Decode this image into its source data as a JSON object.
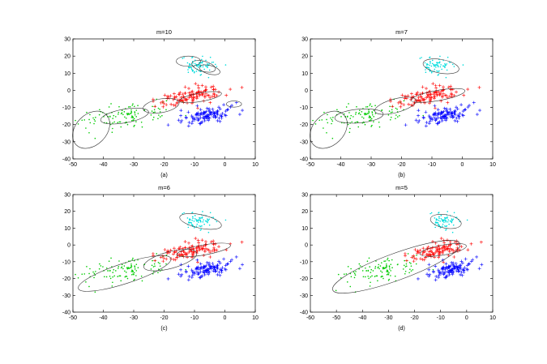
{
  "figure": {
    "colors": {
      "green": "#00cc00",
      "red": "#ff0000",
      "blue": "#0000ff",
      "cyan": "#00dddd",
      "ellipse": "#333333"
    }
  },
  "chart_data": [
    {
      "type": "scatter",
      "title": "m=10",
      "caption": "(a)",
      "xlim": [
        -50,
        10
      ],
      "ylim": [
        -40,
        30
      ],
      "xticks": [
        -50,
        -40,
        -30,
        -20,
        -10,
        0,
        10
      ],
      "yticks": [
        -40,
        -30,
        -20,
        -10,
        0,
        10,
        20,
        30
      ],
      "series": [
        {
          "name": "green cluster",
          "color": "green",
          "marker": "dot",
          "center": [
            -33,
            -15
          ],
          "spread": [
            7,
            3.5
          ],
          "count": 120
        },
        {
          "name": "red cluster",
          "color": "red",
          "marker": "plus",
          "center": [
            -10,
            -3
          ],
          "spread": [
            6,
            2.5
          ],
          "count": 110
        },
        {
          "name": "blue cluster",
          "color": "blue",
          "marker": "plus",
          "center": [
            -6,
            -15
          ],
          "spread": [
            5,
            2
          ],
          "count": 110
        },
        {
          "name": "cyan cluster",
          "color": "cyan",
          "marker": "dot",
          "center": [
            -8,
            14
          ],
          "spread": [
            3,
            2.5
          ],
          "count": 80
        }
      ],
      "ellipses": [
        {
          "cx": -44,
          "cy": -23,
          "rx": 7,
          "ry": 9,
          "angle": 45
        },
        {
          "cx": -33,
          "cy": -15,
          "rx": 8,
          "ry": 4,
          "angle": 10
        },
        {
          "cx": -21,
          "cy": -9,
          "rx": 6,
          "ry": 4,
          "angle": 10
        },
        {
          "cx": -8,
          "cy": -4,
          "rx": 7,
          "ry": 2.5,
          "angle": 10
        },
        {
          "cx": 3,
          "cy": -8,
          "rx": 2.5,
          "ry": 1.8,
          "angle": 0
        },
        {
          "cx": -12,
          "cy": 17,
          "rx": 4,
          "ry": 3,
          "angle": 0
        },
        {
          "cx": -7,
          "cy": 14,
          "rx": 4,
          "ry": 3,
          "angle": -15
        },
        {
          "cx": -5,
          "cy": 12,
          "rx": 3.5,
          "ry": 2.5,
          "angle": -15
        }
      ]
    },
    {
      "type": "scatter",
      "title": "m=7",
      "caption": "(b)",
      "xlim": [
        -50,
        10
      ],
      "ylim": [
        -40,
        30
      ],
      "xticks": [
        -50,
        -40,
        -30,
        -20,
        -10,
        0,
        10
      ],
      "yticks": [
        -40,
        -30,
        -20,
        -10,
        0,
        10,
        20,
        30
      ],
      "series": [
        {
          "name": "green cluster",
          "color": "green",
          "marker": "dot",
          "center": [
            -33,
            -15
          ],
          "spread": [
            7,
            3.5
          ],
          "count": 120
        },
        {
          "name": "red cluster",
          "color": "red",
          "marker": "plus",
          "center": [
            -10,
            -3
          ],
          "spread": [
            6,
            2.5
          ],
          "count": 110
        },
        {
          "name": "blue cluster",
          "color": "blue",
          "marker": "plus",
          "center": [
            -6,
            -15
          ],
          "spread": [
            5,
            2
          ],
          "count": 110
        },
        {
          "name": "cyan cluster",
          "color": "cyan",
          "marker": "dot",
          "center": [
            -8,
            14
          ],
          "spread": [
            3,
            2.5
          ],
          "count": 80
        }
      ],
      "ellipses": [
        {
          "cx": -44,
          "cy": -23,
          "rx": 7,
          "ry": 9,
          "angle": 45
        },
        {
          "cx": -34,
          "cy": -15,
          "rx": 8,
          "ry": 4,
          "angle": 5
        },
        {
          "cx": -22,
          "cy": -9,
          "rx": 7,
          "ry": 4,
          "angle": 15
        },
        {
          "cx": -8,
          "cy": -3,
          "rx": 9,
          "ry": 3,
          "angle": 10
        },
        {
          "cx": -7,
          "cy": 14,
          "rx": 6,
          "ry": 4,
          "angle": -10
        }
      ]
    },
    {
      "type": "scatter",
      "title": "m=6",
      "caption": "(c)",
      "xlim": [
        -50,
        10
      ],
      "ylim": [
        -40,
        30
      ],
      "xticks": [
        -50,
        -40,
        -30,
        -20,
        -10,
        0,
        10
      ],
      "yticks": [
        -40,
        -30,
        -20,
        -10,
        0,
        10,
        20,
        30
      ],
      "series": [
        {
          "name": "green cluster",
          "color": "green",
          "marker": "dot",
          "center": [
            -33,
            -15
          ],
          "spread": [
            7,
            3.5
          ],
          "count": 120
        },
        {
          "name": "red cluster",
          "color": "red",
          "marker": "plus",
          "center": [
            -10,
            -3
          ],
          "spread": [
            6,
            2.5
          ],
          "count": 110
        },
        {
          "name": "blue cluster",
          "color": "blue",
          "marker": "plus",
          "center": [
            -6,
            -15
          ],
          "spread": [
            5,
            2
          ],
          "count": 110
        },
        {
          "name": "cyan cluster",
          "color": "cyan",
          "marker": "dot",
          "center": [
            -8,
            14
          ],
          "spread": [
            3,
            2.5
          ],
          "count": 80
        }
      ],
      "ellipses": [
        {
          "cx": -33,
          "cy": -17,
          "rx": 16,
          "ry": 6,
          "angle": 18
        },
        {
          "cx": -18,
          "cy": -9,
          "rx": 9,
          "ry": 5,
          "angle": 15
        },
        {
          "cx": -7,
          "cy": -3,
          "rx": 9,
          "ry": 3,
          "angle": 10
        },
        {
          "cx": -8,
          "cy": 14,
          "rx": 7,
          "ry": 4,
          "angle": -12
        }
      ]
    },
    {
      "type": "scatter",
      "title": "m=5",
      "caption": "(d)",
      "xlim": [
        -60,
        10
      ],
      "ylim": [
        -40,
        30
      ],
      "xticks": [
        -60,
        -50,
        -40,
        -30,
        -20,
        -10,
        0,
        10
      ],
      "yticks": [
        -40,
        -30,
        -20,
        -10,
        0,
        10,
        20,
        30
      ],
      "series": [
        {
          "name": "green cluster",
          "color": "green",
          "marker": "dot",
          "center": [
            -33,
            -15
          ],
          "spread": [
            7,
            3.5
          ],
          "count": 120
        },
        {
          "name": "red cluster",
          "color": "red",
          "marker": "plus",
          "center": [
            -10,
            -3
          ],
          "spread": [
            6,
            2.5
          ],
          "count": 110
        },
        {
          "name": "blue cluster",
          "color": "blue",
          "marker": "plus",
          "center": [
            -6,
            -15
          ],
          "spread": [
            5,
            2
          ],
          "count": 110
        },
        {
          "name": "cyan cluster",
          "color": "cyan",
          "marker": "dot",
          "center": [
            -8,
            14
          ],
          "spread": [
            3,
            2.5
          ],
          "count": 80
        }
      ],
      "ellipses": [
        {
          "cx": -27,
          "cy": -13,
          "rx": 26,
          "ry": 8,
          "angle": 20
        },
        {
          "cx": -9,
          "cy": -3,
          "rx": 9,
          "ry": 3,
          "angle": 10
        },
        {
          "cx": -8,
          "cy": 14,
          "rx": 6,
          "ry": 4,
          "angle": -10
        }
      ]
    }
  ]
}
